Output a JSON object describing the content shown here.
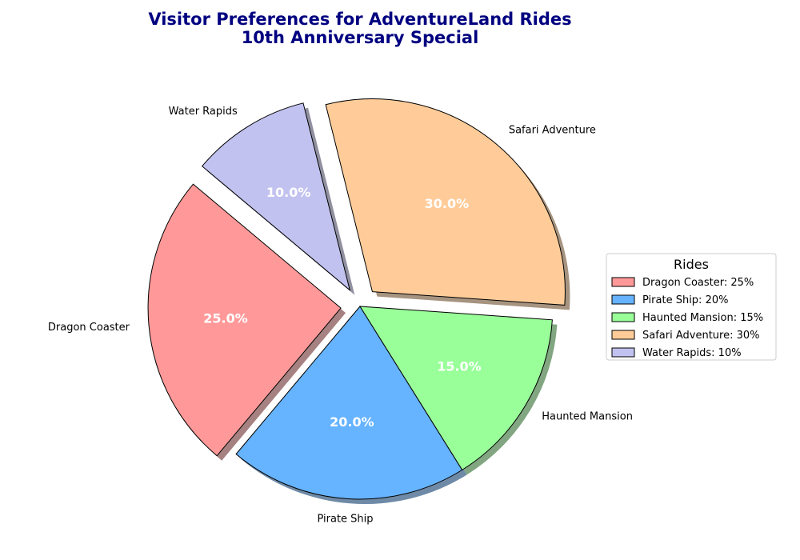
{
  "chart_data": {
    "type": "pie",
    "title": "Visitor Preferences for AdventureLand Rides",
    "subtitle": "10th Anniversary Special",
    "categories": [
      "Dragon Coaster",
      "Pirate Ship",
      "Haunted Mansion",
      "Safari Adventure",
      "Water Rapids"
    ],
    "values": [
      25,
      20,
      15,
      30,
      10
    ],
    "percent_labels": [
      "25.0%",
      "20.0%",
      "15.0%",
      "30.0%",
      "10.0%"
    ],
    "colors": [
      "#FF9999",
      "#66B3FF",
      "#99FF99",
      "#FFCC99",
      "#C2C2F0"
    ],
    "exploded": [
      true,
      false,
      false,
      true,
      true
    ],
    "start_angle_deg": 140,
    "shadow": true,
    "legend": {
      "title": "Rides",
      "placement": "right",
      "entries": [
        "Dragon Coaster: 25%",
        "Pirate Ship: 20%",
        "Haunted Mansion: 15%",
        "Safari Adventure: 30%",
        "Water Rapids: 10%"
      ]
    }
  }
}
